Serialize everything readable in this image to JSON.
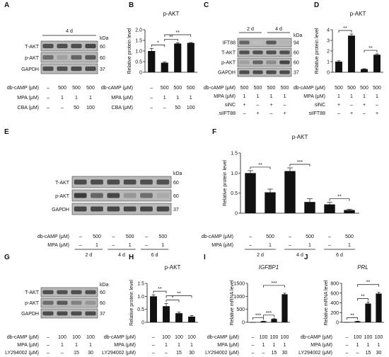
{
  "panel_letters": [
    "A",
    "B",
    "C",
    "D",
    "E",
    "F",
    "G",
    "H",
    "I",
    "J"
  ],
  "blots": {
    "A": {
      "header": "4 d",
      "unit": "kDa",
      "bands": [
        {
          "name": "T-AKT",
          "kda": "60"
        },
        {
          "name": "p-AKT",
          "kda": "60"
        },
        {
          "name": "GAPDH",
          "kda": "37"
        }
      ],
      "rows": [
        {
          "label": "db-cAMP (μM)",
          "values": [
            "–",
            "500",
            "500",
            "500"
          ]
        },
        {
          "label": "MPA (μM)",
          "values": [
            "–",
            "1",
            "1",
            "1"
          ]
        },
        {
          "label": "CBA (μM)",
          "values": [
            "–",
            "–",
            "50",
            "100"
          ]
        }
      ]
    },
    "C": {
      "headers": [
        "2 d",
        "4 d"
      ],
      "unit": "kDa",
      "bands": [
        {
          "name": "IFT88",
          "kda": "94"
        },
        {
          "name": "T-AKT",
          "kda": "60"
        },
        {
          "name": "p-AKT",
          "kda": "60"
        },
        {
          "name": "GAPDH",
          "kda": "37"
        }
      ],
      "rows": [
        {
          "label": "db-cAMP (μM)",
          "values": [
            "500",
            "500",
            "500",
            "500"
          ]
        },
        {
          "label": "MPA (μM)",
          "values": [
            "1",
            "1",
            "1",
            "1"
          ]
        },
        {
          "label": "siNC",
          "values": [
            "+",
            "–",
            "+",
            "–"
          ]
        },
        {
          "label": "siIFT88",
          "values": [
            "–",
            "+",
            "–",
            "+"
          ]
        }
      ]
    },
    "E": {
      "unit": "kDa",
      "bands": [
        {
          "name": "T-AKT",
          "kda": "60"
        },
        {
          "name": "p-AKT",
          "kda": "60"
        },
        {
          "name": "GAPDH",
          "kda": "37"
        }
      ],
      "rows": [
        {
          "label": "db-cAMP (μM)",
          "values": [
            "–",
            "500",
            "–",
            "500",
            "–",
            "500"
          ]
        },
        {
          "label": "MPA (μM)",
          "values": [
            "–",
            "1",
            "–",
            "1",
            "–",
            "1"
          ]
        }
      ],
      "groups": [
        "2 d",
        "4 d",
        "6 d"
      ]
    },
    "G": {
      "unit": "kDa",
      "bands": [
        {
          "name": "T-AKT",
          "kda": "60"
        },
        {
          "name": "p-AKT",
          "kda": "60"
        },
        {
          "name": "GAPDH",
          "kda": "37"
        }
      ],
      "rows": [
        {
          "label": "db-cAMP (μM)",
          "values": [
            "–",
            "100",
            "100",
            "100"
          ]
        },
        {
          "label": "MPA (μM)",
          "values": [
            "–",
            "1",
            "1",
            "1"
          ]
        },
        {
          "label": "LY294002 (μM)",
          "values": [
            "–",
            "–",
            "15",
            "30"
          ]
        }
      ]
    }
  },
  "chart_data": [
    {
      "panel": "B",
      "type": "bar",
      "title": "p-AKT",
      "ylabel": "Relative protein level",
      "ylim": [
        0,
        2.0
      ],
      "yticks": [
        "0",
        "0.5",
        "1.0",
        "1.5",
        "2.0"
      ],
      "values": [
        1.0,
        0.45,
        1.35,
        1.38
      ],
      "errors": [
        0.12,
        0.03,
        0.04,
        0.02
      ],
      "signif": [
        {
          "a": 0,
          "b": 1,
          "label": "*"
        },
        {
          "a": 1,
          "b": 2,
          "label": "**"
        },
        {
          "a": 1,
          "b": 3,
          "label": "**"
        }
      ],
      "rows": [
        {
          "label": "db-cAMP (μM)",
          "values": [
            "–",
            "500",
            "500",
            "500"
          ]
        },
        {
          "label": "MPA (μM)",
          "values": [
            "–",
            "1",
            "1",
            "1"
          ]
        },
        {
          "label": "CBA (μM)",
          "values": [
            "–",
            "–",
            "50",
            "100"
          ]
        }
      ]
    },
    {
      "panel": "D",
      "type": "bar",
      "title": "p-AKT",
      "ylabel": "Relative protein level",
      "ylim": [
        0,
        4
      ],
      "yticks": [
        "0",
        "1",
        "2",
        "3",
        "4"
      ],
      "values": [
        1.0,
        3.45,
        0.3,
        1.65
      ],
      "errors": [
        0.08,
        0.15,
        0.03,
        0.08
      ],
      "signif": [
        {
          "a": 0,
          "b": 1,
          "label": "**"
        },
        {
          "a": 2,
          "b": 3,
          "label": "**"
        }
      ],
      "rows": [
        {
          "label": "db-cAMP (μM)",
          "values": [
            "500",
            "500",
            "500",
            "500"
          ]
        },
        {
          "label": "MPA (μM)",
          "values": [
            "1",
            "1",
            "1",
            "1"
          ]
        },
        {
          "label": "siNC",
          "values": [
            "+",
            "–",
            "+",
            "–"
          ]
        },
        {
          "label": "siIFT88",
          "values": [
            "–",
            "+",
            "–",
            "+"
          ]
        }
      ]
    },
    {
      "panel": "F",
      "type": "bar",
      "title": "p-AKT",
      "ylabel": "Relative protein level",
      "ylim": [
        0,
        1.5
      ],
      "yticks": [
        "0",
        "0.5",
        "1.0",
        "1.5"
      ],
      "values": [
        1.0,
        0.52,
        1.05,
        0.28,
        0.22,
        0.08
      ],
      "errors": [
        0.06,
        0.08,
        0.08,
        0.08,
        0.05,
        0.02
      ],
      "signif": [
        {
          "a": 0,
          "b": 1,
          "label": "**"
        },
        {
          "a": 2,
          "b": 3,
          "label": "***"
        },
        {
          "a": 4,
          "b": 5,
          "label": "**"
        }
      ],
      "rows": [
        {
          "label": "db-cAMP (μM)",
          "values": [
            "–",
            "500",
            "–",
            "500",
            "–",
            "500"
          ]
        },
        {
          "label": "MPA (μM)",
          "values": [
            "–",
            "1",
            "–",
            "1",
            "–",
            "1"
          ]
        }
      ],
      "groups": [
        "2 d",
        "4 d",
        "6 d"
      ]
    },
    {
      "panel": "H",
      "type": "bar",
      "title": "p-AKT",
      "ylabel": "Relative protein level",
      "ylim": [
        0,
        1.5
      ],
      "yticks": [
        "0",
        "0.5",
        "1.0",
        "1.5"
      ],
      "values": [
        1.0,
        0.62,
        0.35,
        0.22
      ],
      "errors": [
        0.06,
        0.1,
        0.04,
        0.04
      ],
      "signif": [
        {
          "a": 0,
          "b": 1,
          "label": "**"
        },
        {
          "a": 1,
          "b": 2,
          "label": "*"
        },
        {
          "a": 1,
          "b": 3,
          "label": "**"
        }
      ],
      "rows": [
        {
          "label": "db-cAMP (μM)",
          "values": [
            "–",
            "100",
            "100",
            "100"
          ]
        },
        {
          "label": "MPA (μM)",
          "values": [
            "–",
            "1",
            "1",
            "1"
          ]
        },
        {
          "label": "LY294002 (μM)",
          "values": [
            "–",
            "–",
            "15",
            "30"
          ]
        }
      ]
    },
    {
      "panel": "I",
      "type": "bar",
      "title": "IGFBP1",
      "italic": true,
      "ylabel": "Relative mRNA level",
      "ylim": [
        0,
        1500
      ],
      "yticks": [
        "0",
        "500",
        "1000",
        "1500"
      ],
      "values": [
        1,
        40,
        130,
        1080
      ],
      "errors": [
        0,
        6,
        12,
        40
      ],
      "signif": [
        {
          "a": 0,
          "b": 1,
          "label": "***"
        },
        {
          "a": 1,
          "b": 2,
          "label": "***"
        },
        {
          "a": 1,
          "b": 3,
          "label": "***"
        }
      ],
      "rows": [
        {
          "label": "db-cAMP (μM)",
          "values": [
            "–",
            "100",
            "100",
            "100"
          ]
        },
        {
          "label": "MPA (μM)",
          "values": [
            "–",
            "1",
            "1",
            "1"
          ]
        },
        {
          "label": "LY294002 (μM)",
          "values": [
            "–",
            "–",
            "15",
            "30"
          ]
        }
      ]
    },
    {
      "panel": "J",
      "type": "bar",
      "title": "PRL",
      "italic": true,
      "ylabel": "Relative mRNA level",
      "ylim": [
        0,
        800
      ],
      "yticks": [
        "0",
        "200",
        "400",
        "600",
        "800"
      ],
      "values": [
        1,
        20,
        385,
        590
      ],
      "errors": [
        0,
        4,
        30,
        25
      ],
      "signif": [
        {
          "a": 0,
          "b": 1,
          "label": "**"
        },
        {
          "a": 1,
          "b": 2,
          "label": "**"
        },
        {
          "a": 1,
          "b": 3,
          "label": "**"
        }
      ],
      "rows": [
        {
          "label": "db-cAMP (μM)",
          "values": [
            "–",
            "100",
            "100",
            "100"
          ]
        },
        {
          "label": "MPA (μM)",
          "values": [
            "–",
            "1",
            "1",
            "1"
          ]
        },
        {
          "label": "LY294002 (μM)",
          "values": [
            "–",
            "–",
            "15",
            "30"
          ]
        }
      ]
    }
  ]
}
